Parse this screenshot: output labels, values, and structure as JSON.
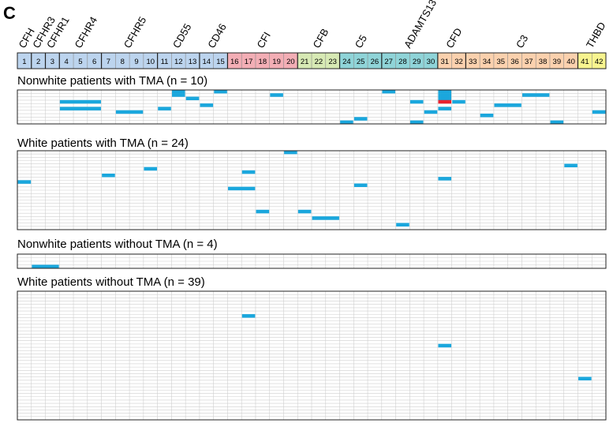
{
  "chart_data": {
    "type": "heatmap",
    "panel_letter": "C",
    "columns": [
      "1",
      "2",
      "3",
      "4",
      "5",
      "6",
      "7",
      "8",
      "9",
      "10",
      "11",
      "12",
      "13",
      "14",
      "15",
      "16",
      "17",
      "18",
      "19",
      "20",
      "21",
      "22",
      "23",
      "24",
      "25",
      "26",
      "27",
      "28",
      "29",
      "30",
      "31",
      "32",
      "33",
      "34",
      "35",
      "36",
      "37",
      "38",
      "39",
      "40",
      "41",
      "42"
    ],
    "genes": [
      {
        "name": "CFH",
        "start": 1,
        "end": 1,
        "color": "#bcd4ee"
      },
      {
        "name": "CFHR3",
        "start": 2,
        "end": 2,
        "color": "#bcd4ee"
      },
      {
        "name": "CFHR1",
        "start": 3,
        "end": 3,
        "color": "#bcd4ee"
      },
      {
        "name": "CFHR4",
        "start": 4,
        "end": 6,
        "color": "#bcd4ee"
      },
      {
        "name": "CFHR5",
        "start": 7,
        "end": 10,
        "color": "#bcd4ee"
      },
      {
        "name": "CD55",
        "start": 11,
        "end": 13,
        "color": "#bcd4ee"
      },
      {
        "name": "CD46",
        "start": 14,
        "end": 15,
        "color": "#bcd4ee"
      },
      {
        "name": "CFI",
        "start": 16,
        "end": 20,
        "color": "#f3aeb5"
      },
      {
        "name": "CFB",
        "start": 21,
        "end": 23,
        "color": "#d7e9b4"
      },
      {
        "name": "C5",
        "start": 24,
        "end": 26,
        "color": "#8fd4d8"
      },
      {
        "name": "ADAMTS13",
        "start": 27,
        "end": 30,
        "color": "#8fd4d8"
      },
      {
        "name": "CFD",
        "start": 31,
        "end": 32,
        "color": "#fbd1ae"
      },
      {
        "name": "C3",
        "start": 33,
        "end": 40,
        "color": "#fbd1ae"
      },
      {
        "name": "THBD",
        "start": 41,
        "end": 42,
        "color": "#f7f48f"
      }
    ],
    "panels": [
      {
        "title": "Nonwhite patients with TMA (n = 10)",
        "n": 10,
        "variants": [
          {
            "row": 1,
            "start": 12,
            "end": 12,
            "type": "variant"
          },
          {
            "row": 1,
            "start": 15,
            "end": 15,
            "type": "variant"
          },
          {
            "row": 1,
            "start": 27,
            "end": 27,
            "type": "variant"
          },
          {
            "row": 1,
            "start": 31,
            "end": 31,
            "type": "variant"
          },
          {
            "row": 2,
            "start": 12,
            "end": 12,
            "type": "variant"
          },
          {
            "row": 2,
            "start": 19,
            "end": 19,
            "type": "variant"
          },
          {
            "row": 2,
            "start": 31,
            "end": 31,
            "type": "variant"
          },
          {
            "row": 2,
            "start": 37,
            "end": 38,
            "type": "variant"
          },
          {
            "row": 3,
            "start": 13,
            "end": 13,
            "type": "variant"
          },
          {
            "row": 3,
            "start": 31,
            "end": 31,
            "type": "variant"
          },
          {
            "row": 4,
            "start": 4,
            "end": 6,
            "type": "variant"
          },
          {
            "row": 4,
            "start": 29,
            "end": 29,
            "type": "variant"
          },
          {
            "row": 4,
            "start": 31,
            "end": 31,
            "type": "highlight"
          },
          {
            "row": 4,
            "start": 32,
            "end": 32,
            "type": "variant"
          },
          {
            "row": 5,
            "start": 14,
            "end": 14,
            "type": "variant"
          },
          {
            "row": 5,
            "start": 35,
            "end": 36,
            "type": "variant"
          },
          {
            "row": 6,
            "start": 4,
            "end": 6,
            "type": "variant"
          },
          {
            "row": 6,
            "start": 11,
            "end": 11,
            "type": "variant"
          },
          {
            "row": 6,
            "start": 31,
            "end": 31,
            "type": "variant"
          },
          {
            "row": 7,
            "start": 8,
            "end": 9,
            "type": "variant"
          },
          {
            "row": 7,
            "start": 30,
            "end": 30,
            "type": "variant"
          },
          {
            "row": 7,
            "start": 42,
            "end": 42,
            "type": "variant"
          },
          {
            "row": 8,
            "start": 34,
            "end": 34,
            "type": "variant"
          },
          {
            "row": 9,
            "start": 25,
            "end": 25,
            "type": "variant"
          },
          {
            "row": 10,
            "start": 24,
            "end": 24,
            "type": "variant"
          },
          {
            "row": 10,
            "start": 29,
            "end": 29,
            "type": "variant"
          },
          {
            "row": 10,
            "start": 39,
            "end": 39,
            "type": "variant"
          }
        ]
      },
      {
        "title": "White patients with TMA (n = 24)",
        "n": 24,
        "variants": [
          {
            "row": 1,
            "start": 20,
            "end": 20,
            "type": "variant"
          },
          {
            "row": 5,
            "start": 40,
            "end": 40,
            "type": "variant"
          },
          {
            "row": 6,
            "start": 10,
            "end": 10,
            "type": "variant"
          },
          {
            "row": 7,
            "start": 17,
            "end": 17,
            "type": "variant"
          },
          {
            "row": 8,
            "start": 7,
            "end": 7,
            "type": "variant"
          },
          {
            "row": 9,
            "start": 31,
            "end": 31,
            "type": "variant"
          },
          {
            "row": 10,
            "start": 1,
            "end": 1,
            "type": "variant"
          },
          {
            "row": 11,
            "start": 25,
            "end": 25,
            "type": "variant"
          },
          {
            "row": 12,
            "start": 16,
            "end": 17,
            "type": "variant"
          },
          {
            "row": 19,
            "start": 18,
            "end": 18,
            "type": "variant"
          },
          {
            "row": 19,
            "start": 21,
            "end": 21,
            "type": "variant"
          },
          {
            "row": 21,
            "start": 22,
            "end": 23,
            "type": "variant"
          },
          {
            "row": 23,
            "start": 28,
            "end": 28,
            "type": "variant"
          }
        ]
      },
      {
        "title": "Nonwhite patients without TMA (n = 4)",
        "n": 4,
        "variants": [
          {
            "row": 4,
            "start": 2,
            "end": 3,
            "type": "variant"
          }
        ]
      },
      {
        "title": "White patients without TMA (n = 39)",
        "n": 39,
        "variants": [
          {
            "row": 8,
            "start": 17,
            "end": 17,
            "type": "variant"
          },
          {
            "row": 17,
            "start": 31,
            "end": 31,
            "type": "variant"
          },
          {
            "row": 27,
            "start": 41,
            "end": 41,
            "type": "variant"
          }
        ]
      }
    ],
    "colors": {
      "variant": "#1aa7dd",
      "highlight": "#e8222f",
      "grid": "#cfcfcf",
      "frame": "#222222"
    }
  }
}
